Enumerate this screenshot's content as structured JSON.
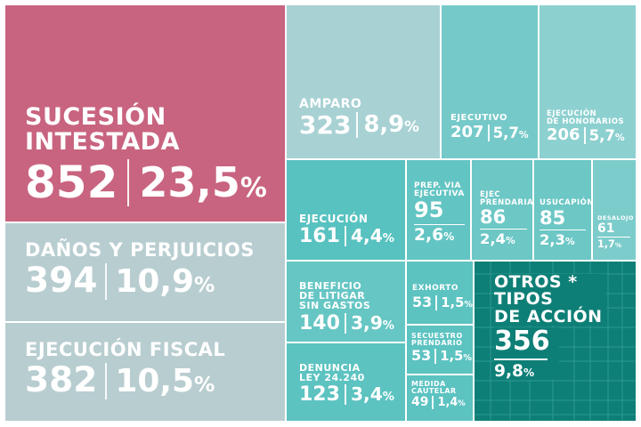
{
  "chart_data": {
    "type": "treemap",
    "title": "",
    "tiles": [
      {
        "label_lines": [
          "SUCESIÓN",
          "INTESTADA"
        ],
        "value": "852",
        "percent": "23,5",
        "color": "#c8647f"
      },
      {
        "label_lines": [
          "DAÑOS Y PERJUICIOS"
        ],
        "value": "394",
        "percent": "10,9",
        "color": "#b8cdd0"
      },
      {
        "label_lines": [
          "EJECUCIÓN FISCAL"
        ],
        "value": "382",
        "percent": "10,5",
        "color": "#b8cdd0"
      },
      {
        "label_lines": [
          "AMPARO"
        ],
        "value": "323",
        "percent": "8,9",
        "color": "#a8d1d3"
      },
      {
        "label_lines": [
          "EJECUTIVO"
        ],
        "value": "207",
        "percent": "5,7",
        "color": "#76c9c9"
      },
      {
        "label_lines": [
          "EJECUCIÓN",
          "DE HONORARIOS"
        ],
        "value": "206",
        "percent": "5,7",
        "color": "#8dd0d0"
      },
      {
        "label_lines": [
          "EJECUCIÓN"
        ],
        "value": "161",
        "percent": "4,4",
        "color": "#58c2c0"
      },
      {
        "label_lines": [
          "PREP. VIA",
          "EJECUTIVA"
        ],
        "value": "95",
        "percent": "2,6",
        "color": "#63c5c3"
      },
      {
        "label_lines": [
          "EJEC",
          "PRENDARIA"
        ],
        "value": "86",
        "percent": "2,4",
        "color": "#6cc7c5"
      },
      {
        "label_lines": [
          "USUCAPIÓN"
        ],
        "value": "85",
        "percent": "2,3",
        "color": "#6cc7c5"
      },
      {
        "label_lines": [
          "DESALOJO"
        ],
        "value": "61",
        "percent": "1,7",
        "color": "#7ccccb"
      },
      {
        "label_lines": [
          "BENEFICIO",
          "DE LITIGAR",
          "SIN GASTOS"
        ],
        "value": "140",
        "percent": "3,9",
        "color": "#66c6c4"
      },
      {
        "label_lines": [
          "EXHORTO"
        ],
        "value": "53",
        "percent": "1,5",
        "color": "#5cc3c1"
      },
      {
        "label_lines": [
          "SECUESTRO",
          "PRENDARIO"
        ],
        "value": "53",
        "percent": "1,5",
        "color": "#5cc3c1"
      },
      {
        "label_lines": [
          "DENUNCIA",
          "LEY 24.240"
        ],
        "value": "123",
        "percent": "3,4",
        "color": "#5cc3c1"
      },
      {
        "label_lines": [
          "MEDIDA",
          "CAUTELAR"
        ],
        "value": "49",
        "percent": "1,4",
        "color": "#5cc3c1"
      },
      {
        "label_lines": [
          "OTROS *",
          "TIPOS",
          "DE ACCIÓN"
        ],
        "value": "356",
        "percent": "9,8",
        "color": "#0e7f77"
      }
    ]
  },
  "percent_sign": "%"
}
